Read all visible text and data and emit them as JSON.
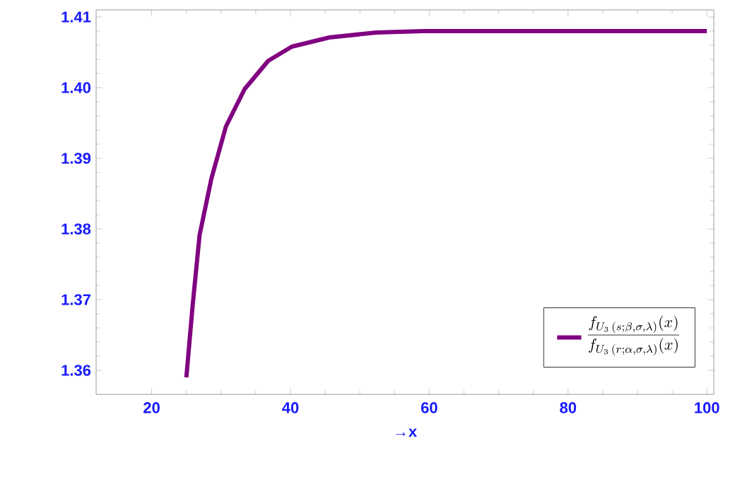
{
  "chart_data": {
    "type": "line",
    "xlabel": "→x",
    "series": [
      {
        "name": "\\frac{f_{U_3\\,(s;\\beta,\\sigma,\\lambda)}(x)}{f_{U_3\\,(r;\\alpha,\\sigma,\\lambda)}(x)}",
        "color": "#800080",
        "x": [
          25.0,
          25.9,
          26.9,
          28.6,
          30.7,
          33.4,
          36.8,
          40.2,
          45.6,
          52.4,
          59.2,
          70,
          80,
          90,
          100
        ],
        "values": [
          1.359,
          1.3691,
          1.3791,
          1.3871,
          1.3945,
          1.3998,
          1.4038,
          1.4058,
          1.4071,
          1.4078,
          1.408,
          1.408,
          1.408,
          1.408,
          1.408
        ]
      }
    ],
    "xlim": [
      12,
      101
    ],
    "ylim": [
      1.3566,
      1.411
    ],
    "xticks": [
      20,
      40,
      60,
      80,
      100
    ],
    "yticks": [
      {
        "value": 1.36,
        "label": "1.36"
      },
      {
        "value": 1.37,
        "label": "1.37"
      },
      {
        "value": 1.38,
        "label": "1.38"
      },
      {
        "value": 1.39,
        "label": "1.39"
      },
      {
        "value": 1.4,
        "label": "1.40"
      },
      {
        "value": 1.41,
        "label": "1.41"
      }
    ],
    "legend": "bottom right",
    "marker": "none",
    "line_style": "solid"
  }
}
